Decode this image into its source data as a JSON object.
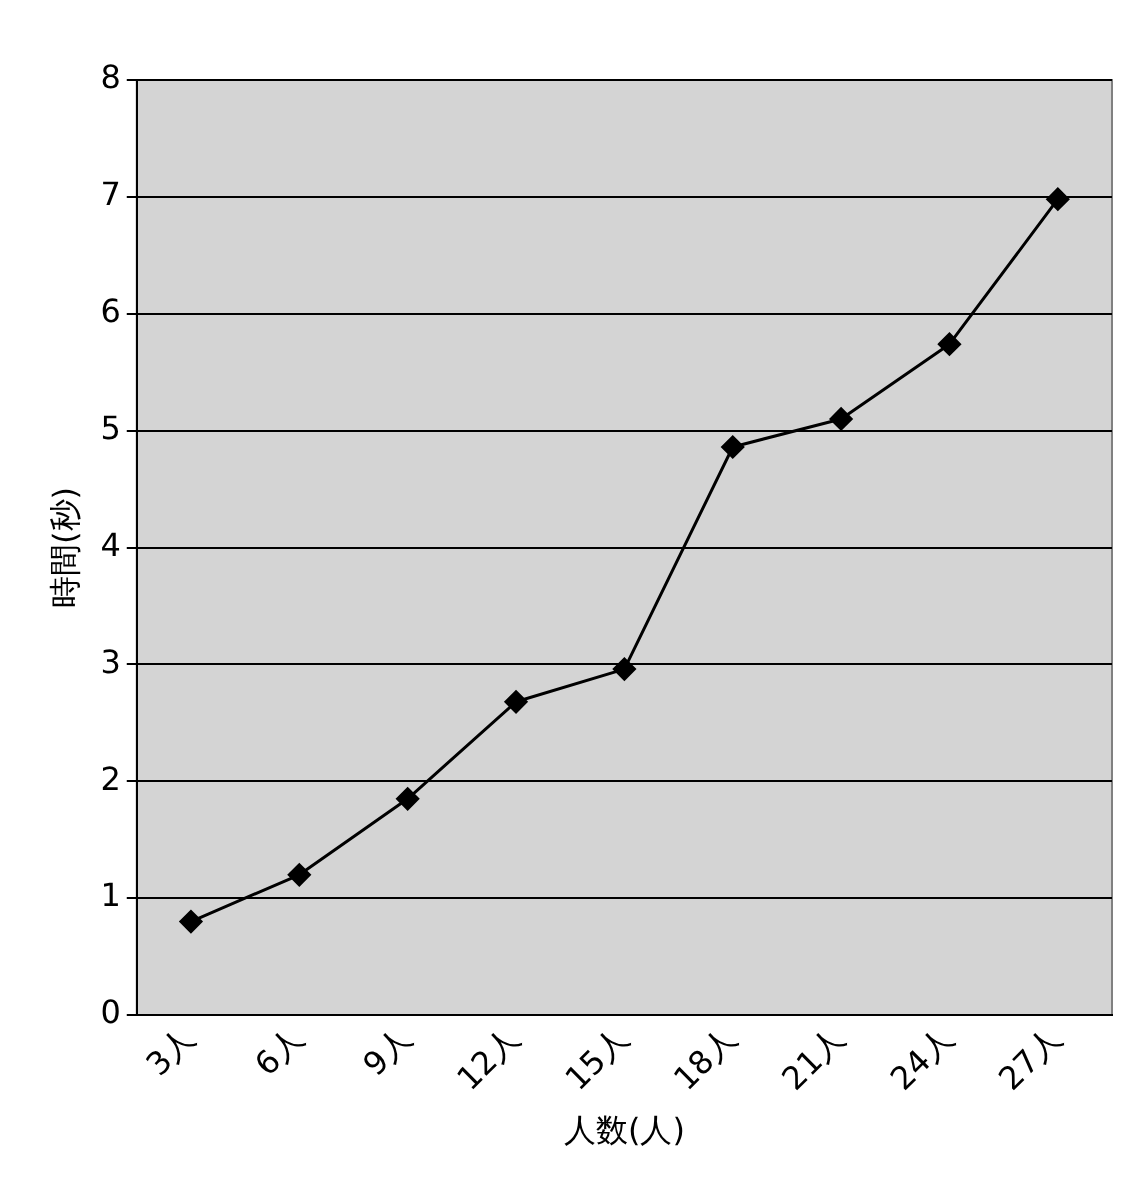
{
  "chart_data": {
    "type": "line",
    "xlabel": "人数(人)",
    "ylabel": "時間(秒)",
    "categories": [
      "3人",
      "6人",
      "9人",
      "12人",
      "15人",
      "18人",
      "21人",
      "24人",
      "27人"
    ],
    "series": [
      {
        "color": "#000000",
        "values": [
          0.8,
          1.2,
          1.85,
          2.68,
          2.96,
          4.86,
          5.1,
          5.74,
          6.98
        ]
      }
    ],
    "ylim": [
      0,
      8
    ],
    "yticks": [
      0,
      1,
      2,
      3,
      4,
      5,
      6,
      7,
      8
    ],
    "grid": "y",
    "legend": false,
    "marker": "diamond",
    "line_style": "solid"
  }
}
